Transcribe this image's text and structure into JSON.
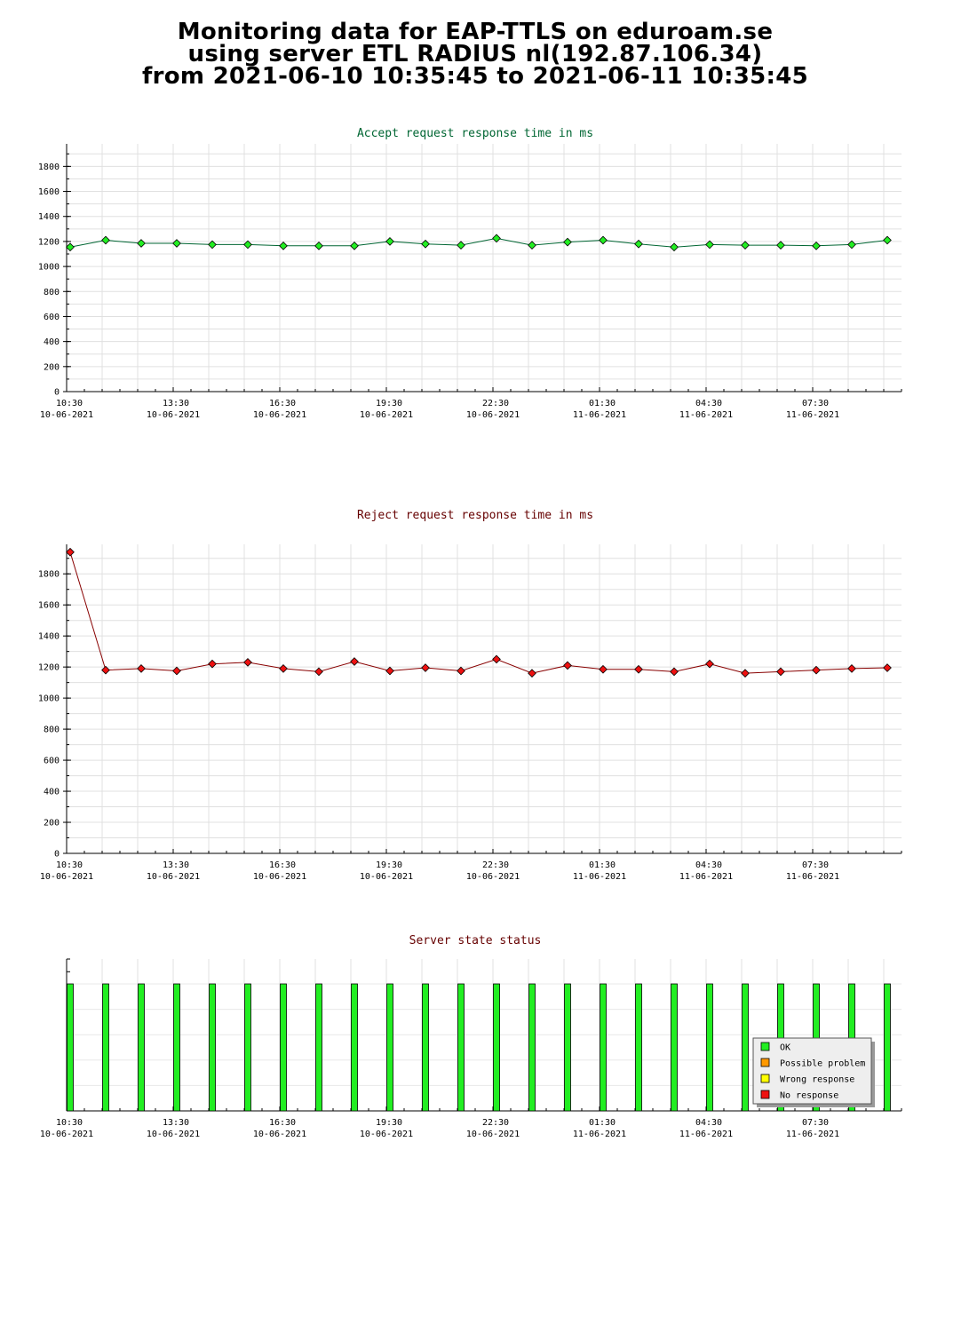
{
  "page_title": {
    "line1": "Monitoring data for EAP-TTLS on eduroam.se",
    "line2": "using server ETL RADIUS nl(192.87.106.34)",
    "line3": "from 2021-06-10 10:35:45 to 2021-06-11 10:35:45"
  },
  "colors": {
    "accept_title": "#006633",
    "reject_title": "#660000",
    "status_title": "#660000",
    "accept_point": "#22ee22",
    "accept_line": "#006633",
    "reject_point": "#ee1111",
    "reject_line": "#880000",
    "ok": "#22ee22",
    "possible_problem": "#ff9900",
    "wrong_response": "#ffff00",
    "no_response": "#ee1111"
  },
  "chart_data": [
    {
      "type": "line",
      "title": "Accept request response time in ms",
      "xlabel": "",
      "ylabel": "",
      "ylim": [
        0,
        1980
      ],
      "yticks": [
        0,
        200,
        400,
        600,
        800,
        1000,
        1200,
        1400,
        1600,
        1800
      ],
      "xtick_labels": [
        {
          "time": "10:30",
          "date": "10-06-2021"
        },
        {
          "time": "13:30",
          "date": "10-06-2021"
        },
        {
          "time": "16:30",
          "date": "10-06-2021"
        },
        {
          "time": "19:30",
          "date": "10-06-2021"
        },
        {
          "time": "22:30",
          "date": "10-06-2021"
        },
        {
          "time": "01:30",
          "date": "11-06-2021"
        },
        {
          "time": "04:30",
          "date": "11-06-2021"
        },
        {
          "time": "07:30",
          "date": "11-06-2021"
        }
      ],
      "grid": true,
      "series": [
        {
          "values": [
            1155,
            1210,
            1185,
            1185,
            1175,
            1175,
            1165,
            1165,
            1165,
            1200,
            1180,
            1170,
            1225,
            1170,
            1195,
            1210,
            1180,
            1155,
            1175,
            1170,
            1170,
            1165,
            1175,
            1210
          ]
        }
      ]
    },
    {
      "type": "line",
      "title": "Reject request response time in ms",
      "xlabel": "",
      "ylabel": "",
      "ylim": [
        0,
        1990
      ],
      "yticks": [
        0,
        200,
        400,
        600,
        800,
        1000,
        1200,
        1400,
        1600,
        1800
      ],
      "xtick_labels": [
        {
          "time": "10:30",
          "date": "10-06-2021"
        },
        {
          "time": "13:30",
          "date": "10-06-2021"
        },
        {
          "time": "16:30",
          "date": "10-06-2021"
        },
        {
          "time": "19:30",
          "date": "10-06-2021"
        },
        {
          "time": "22:30",
          "date": "10-06-2021"
        },
        {
          "time": "01:30",
          "date": "11-06-2021"
        },
        {
          "time": "04:30",
          "date": "11-06-2021"
        },
        {
          "time": "07:30",
          "date": "11-06-2021"
        }
      ],
      "grid": true,
      "series": [
        {
          "values": [
            1940,
            1180,
            1190,
            1175,
            1220,
            1230,
            1190,
            1170,
            1235,
            1175,
            1195,
            1175,
            1250,
            1160,
            1210,
            1185,
            1185,
            1170,
            1220,
            1160,
            1170,
            1180,
            1190,
            1195
          ]
        }
      ]
    },
    {
      "type": "bar",
      "title": "Server state status",
      "xlabel": "",
      "ylabel": "",
      "xtick_labels": [
        {
          "time": "10:30",
          "date": "10-06-2021"
        },
        {
          "time": "13:30",
          "date": "10-06-2021"
        },
        {
          "time": "16:30",
          "date": "10-06-2021"
        },
        {
          "time": "19:30",
          "date": "10-06-2021"
        },
        {
          "time": "22:30",
          "date": "10-06-2021"
        },
        {
          "time": "01:30",
          "date": "11-06-2021"
        },
        {
          "time": "04:30",
          "date": "11-06-2021"
        },
        {
          "time": "07:30",
          "date": "11-06-2021"
        }
      ],
      "states": [
        "OK",
        "OK",
        "OK",
        "OK",
        "OK",
        "OK",
        "OK",
        "OK",
        "OK",
        "OK",
        "OK",
        "OK",
        "OK",
        "OK",
        "OK",
        "OK",
        "OK",
        "OK",
        "OK",
        "OK",
        "OK",
        "OK",
        "OK",
        "OK"
      ],
      "legend_position": "bottom-right",
      "legend": [
        {
          "label": "OK",
          "color_key": "ok"
        },
        {
          "label": "Possible problem",
          "color_key": "possible_problem"
        },
        {
          "label": "Wrong response",
          "color_key": "wrong_response"
        },
        {
          "label": "No response",
          "color_key": "no_response"
        }
      ]
    }
  ]
}
